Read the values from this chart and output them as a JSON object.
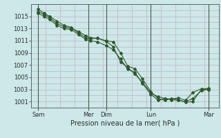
{
  "background_color": "#cce8e8",
  "grid_color": "#c8b8c8",
  "line_color": "#2d5a2d",
  "vline_color": "#4a5a4a",
  "title": "Pression niveau de la mer( hPa )",
  "ylim": [
    1000.0,
    1017.0
  ],
  "yticks": [
    1001,
    1003,
    1005,
    1007,
    1009,
    1011,
    1013,
    1015
  ],
  "xlim": [
    0,
    13.0
  ],
  "xtick_labels": [
    "Sam",
    "Mer",
    "Dim",
    "Lun",
    "Mar"
  ],
  "xtick_positions": [
    0.5,
    4.0,
    5.2,
    8.3,
    12.3
  ],
  "vline_positions": [
    0.5,
    4.0,
    5.2,
    8.3,
    12.3
  ],
  "line1_x": [
    0.5,
    0.9,
    1.3,
    1.8,
    2.3,
    2.8,
    3.3,
    3.8,
    4.1,
    4.6,
    5.2,
    5.7,
    6.2,
    6.7,
    7.2,
    7.7,
    8.3,
    8.8,
    9.3,
    9.7,
    10.2,
    10.7,
    11.2,
    11.8,
    12.3
  ],
  "line1_y": [
    1016.2,
    1015.5,
    1015.0,
    1014.2,
    1013.5,
    1013.2,
    1012.2,
    1011.5,
    1011.3,
    1011.4,
    1011.0,
    1010.8,
    1009.0,
    1006.8,
    1006.4,
    1004.8,
    1002.6,
    1001.5,
    1001.2,
    1001.5,
    1001.3,
    1000.9,
    1001.0,
    1003.0,
    1003.2
  ],
  "line2_x": [
    0.5,
    0.9,
    1.3,
    1.8,
    2.3,
    2.8,
    3.3,
    3.8,
    4.1,
    4.6,
    5.2,
    5.7,
    6.2,
    6.7,
    7.2,
    7.7,
    8.3,
    8.8,
    9.3,
    9.7,
    10.2,
    10.7,
    11.2,
    11.8,
    12.3
  ],
  "line2_y": [
    1015.8,
    1015.3,
    1014.8,
    1013.8,
    1013.3,
    1013.0,
    1012.5,
    1011.8,
    1011.5,
    1011.4,
    1010.9,
    1010.0,
    1007.5,
    1006.6,
    1005.5,
    1004.2,
    1002.4,
    1001.8,
    1001.5,
    1001.4,
    1001.6,
    1001.2,
    1002.5,
    1003.1,
    1003.0
  ],
  "line3_x": [
    0.5,
    0.9,
    1.3,
    1.8,
    2.3,
    2.8,
    3.3,
    3.8,
    4.1,
    4.6,
    5.2,
    5.7,
    6.2,
    6.7,
    7.2,
    7.7,
    8.3,
    8.8,
    9.3,
    9.7,
    10.2,
    10.7,
    11.2,
    11.8,
    12.3
  ],
  "line3_y": [
    1015.5,
    1015.0,
    1014.5,
    1013.5,
    1013.0,
    1012.8,
    1012.0,
    1011.2,
    1011.0,
    1010.8,
    1010.2,
    1009.5,
    1008.0,
    1006.3,
    1005.8,
    1004.0,
    1002.2,
    1001.2,
    1001.5,
    1001.3,
    1001.2,
    1001.0,
    1001.5,
    1002.8,
    1003.0
  ]
}
